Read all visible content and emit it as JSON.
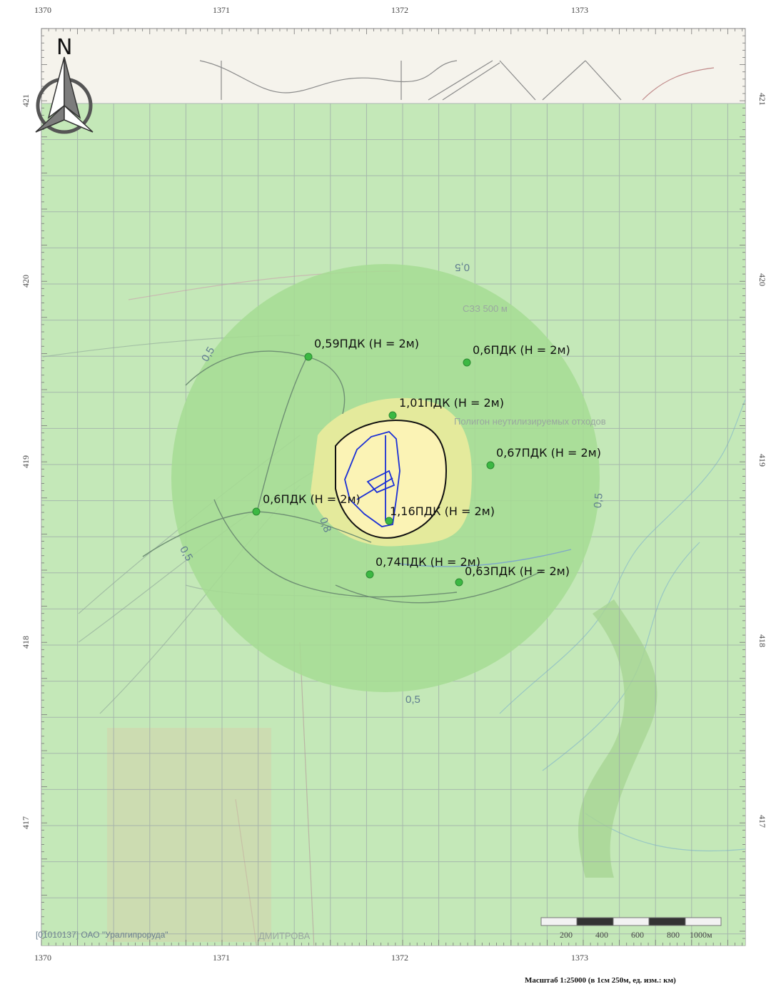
{
  "map": {
    "x_ticks": [
      "1370",
      "1371",
      "1372",
      "1373"
    ],
    "y_ticks": [
      "421",
      "420",
      "419",
      "418",
      "417"
    ],
    "north_label": "N",
    "base_labels": {
      "szz": "СЗЗ 500 м",
      "landfill": "Полигон неутилизируемых отходов",
      "town": "ДМИТРОВА"
    },
    "isolines": [
      {
        "value": "0,5"
      },
      {
        "value": "0,8"
      }
    ],
    "points": [
      {
        "label": "0,59ПДК (H = 2м)"
      },
      {
        "label": "0,6ПДК (H = 2м)"
      },
      {
        "label": "1,01ПДК (H = 2м)"
      },
      {
        "label": "0,67ПДК (H = 2м)"
      },
      {
        "label": "0,6ПДК (H = 2м)"
      },
      {
        "label": "1,16ПДК (H = 2м)"
      },
      {
        "label": "0,74ПДК (H = 2м)"
      },
      {
        "label": "0,63ПДК (H = 2м)"
      }
    ],
    "scale_bar": {
      "ticks": [
        "200",
        "400",
        "600",
        "800",
        "1000м"
      ]
    },
    "credit": "[01010137] ОАО \"Уралгипроруда\"",
    "scale_text": "Масштаб 1:25000 (в 1см 250м, ед. изм.: км)",
    "colors": {
      "outer_zone": "#c4e8b8",
      "mid_zone": "#a6dc93",
      "inner_zone": "#e4ea9c",
      "core_zone": "#fbf3b5",
      "site_outline": "#1a2fd6",
      "point": "#3cb843"
    }
  }
}
